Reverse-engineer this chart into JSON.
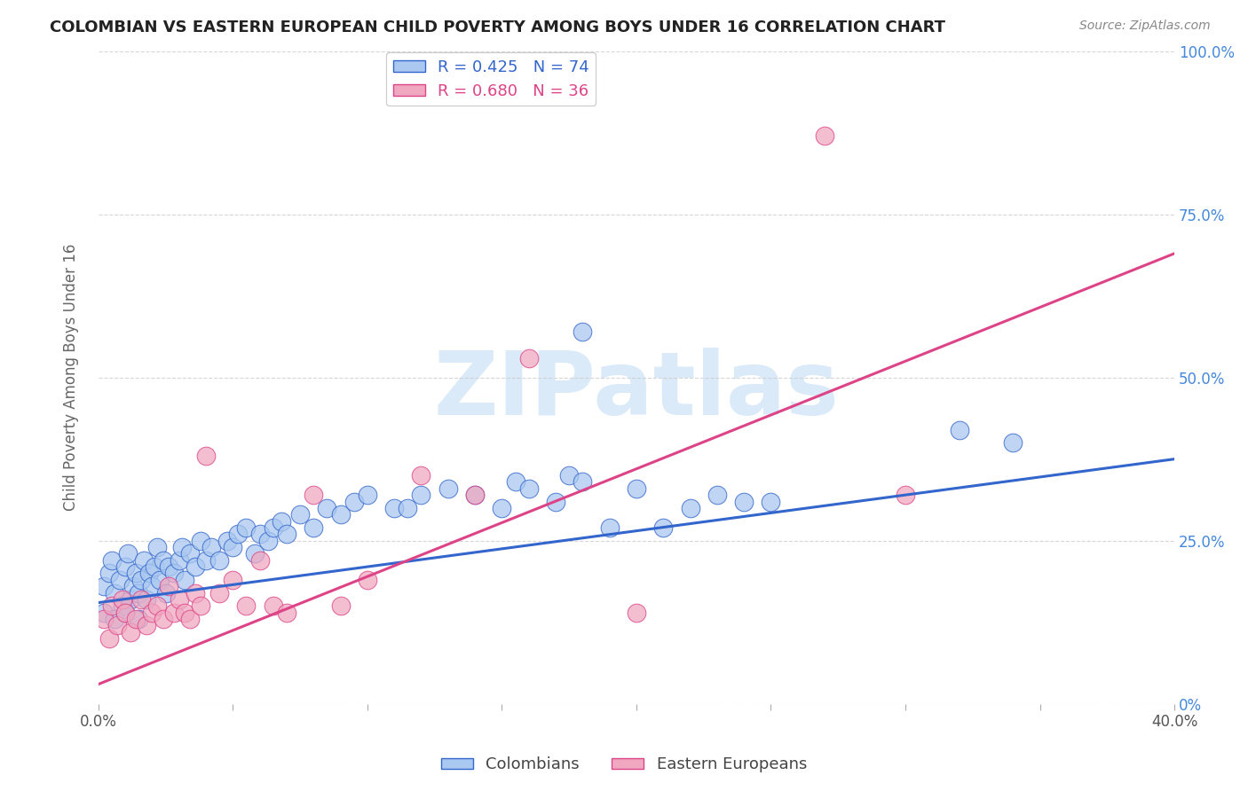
{
  "title": "COLOMBIAN VS EASTERN EUROPEAN CHILD POVERTY AMONG BOYS UNDER 16 CORRELATION CHART",
  "source": "Source: ZipAtlas.com",
  "ylabel": "Child Poverty Among Boys Under 16",
  "xlim": [
    0.0,
    0.4
  ],
  "ylim": [
    0.0,
    1.0
  ],
  "blue_R": 0.425,
  "blue_N": 74,
  "pink_R": 0.68,
  "pink_N": 36,
  "blue_color": "#aac8f0",
  "pink_color": "#f0a8c0",
  "blue_line_color": "#3366cc",
  "pink_line_color": "#dd4488",
  "watermark_color": "#daeaf8",
  "background_color": "#ffffff",
  "legend_blue_label": "R = 0.425   N = 74",
  "legend_pink_label": "R = 0.680   N = 36",
  "colombians_label": "Colombians",
  "eastern_europeans_label": "Eastern Europeans",
  "blue_slope": 0.55,
  "blue_intercept": 0.155,
  "pink_slope": 1.65,
  "pink_intercept": 0.03,
  "blue_points_x": [
    0.002,
    0.004,
    0.005,
    0.006,
    0.008,
    0.009,
    0.01,
    0.011,
    0.012,
    0.013,
    0.014,
    0.015,
    0.016,
    0.017,
    0.018,
    0.019,
    0.02,
    0.021,
    0.022,
    0.023,
    0.024,
    0.025,
    0.026,
    0.028,
    0.03,
    0.031,
    0.032,
    0.034,
    0.036,
    0.038,
    0.04,
    0.042,
    0.045,
    0.048,
    0.05,
    0.052,
    0.055,
    0.058,
    0.06,
    0.063,
    0.065,
    0.068,
    0.07,
    0.075,
    0.08,
    0.085,
    0.09,
    0.095,
    0.1,
    0.11,
    0.115,
    0.12,
    0.13,
    0.14,
    0.15,
    0.155,
    0.16,
    0.17,
    0.175,
    0.18,
    0.19,
    0.2,
    0.21,
    0.22,
    0.23,
    0.24,
    0.25,
    0.18,
    0.32,
    0.34,
    0.002,
    0.006,
    0.01,
    0.015
  ],
  "blue_points_y": [
    0.18,
    0.2,
    0.22,
    0.17,
    0.19,
    0.15,
    0.21,
    0.23,
    0.16,
    0.18,
    0.2,
    0.17,
    0.19,
    0.22,
    0.16,
    0.2,
    0.18,
    0.21,
    0.24,
    0.19,
    0.22,
    0.17,
    0.21,
    0.2,
    0.22,
    0.24,
    0.19,
    0.23,
    0.21,
    0.25,
    0.22,
    0.24,
    0.22,
    0.25,
    0.24,
    0.26,
    0.27,
    0.23,
    0.26,
    0.25,
    0.27,
    0.28,
    0.26,
    0.29,
    0.27,
    0.3,
    0.29,
    0.31,
    0.32,
    0.3,
    0.3,
    0.32,
    0.33,
    0.32,
    0.3,
    0.34,
    0.33,
    0.31,
    0.35,
    0.34,
    0.27,
    0.33,
    0.27,
    0.3,
    0.32,
    0.31,
    0.31,
    0.57,
    0.42,
    0.4,
    0.14,
    0.13,
    0.14,
    0.13
  ],
  "pink_points_x": [
    0.002,
    0.004,
    0.005,
    0.007,
    0.009,
    0.01,
    0.012,
    0.014,
    0.016,
    0.018,
    0.02,
    0.022,
    0.024,
    0.026,
    0.028,
    0.03,
    0.032,
    0.034,
    0.036,
    0.038,
    0.04,
    0.045,
    0.05,
    0.055,
    0.06,
    0.065,
    0.07,
    0.08,
    0.09,
    0.1,
    0.12,
    0.14,
    0.16,
    0.2,
    0.27,
    0.3
  ],
  "pink_points_y": [
    0.13,
    0.1,
    0.15,
    0.12,
    0.16,
    0.14,
    0.11,
    0.13,
    0.16,
    0.12,
    0.14,
    0.15,
    0.13,
    0.18,
    0.14,
    0.16,
    0.14,
    0.13,
    0.17,
    0.15,
    0.38,
    0.17,
    0.19,
    0.15,
    0.22,
    0.15,
    0.14,
    0.32,
    0.15,
    0.19,
    0.35,
    0.32,
    0.53,
    0.14,
    0.87,
    0.32
  ]
}
